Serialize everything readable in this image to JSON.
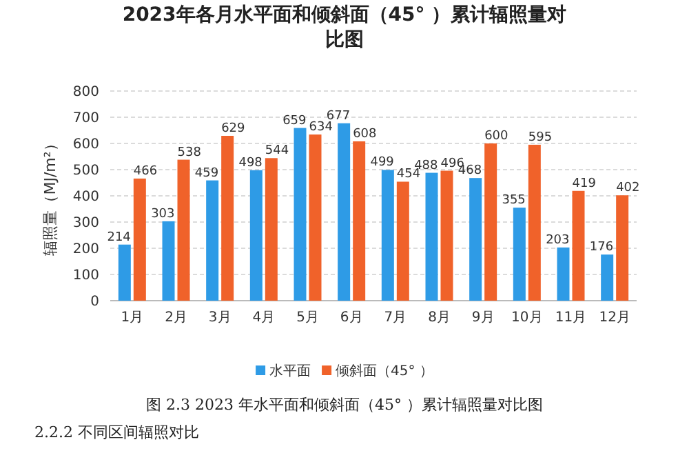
{
  "chart_data": {
    "type": "bar",
    "title": "2023年各月水平面和倾斜面（45° ）累计辐照量对比图",
    "ylabel": "辐照量（MJ/m²）",
    "categories": [
      "1月",
      "2月",
      "3月",
      "4月",
      "5月",
      "6月",
      "7月",
      "8月",
      "9月",
      "10月",
      "11月",
      "12月"
    ],
    "series": [
      {
        "name": "水平面",
        "color": "#2e9be6",
        "values": [
          214,
          303,
          459,
          498,
          659,
          677,
          499,
          488,
          468,
          355,
          203,
          176
        ]
      },
      {
        "name": "倾斜面（45° ）",
        "color": "#f0622a",
        "values": [
          466,
          538,
          629,
          544,
          634,
          608,
          454,
          496,
          600,
          595,
          419,
          402
        ]
      }
    ],
    "ylim": [
      0,
      800
    ],
    "yticks": [
      0,
      100,
      200,
      300,
      400,
      500,
      600,
      700,
      800
    ],
    "grid": "y",
    "legend": "bottom",
    "data_labels": true,
    "annotations": [
      "图 2.3 2023 年水平面和倾斜面（45° ）累计辐照量对比图",
      "2.2.2 不同区间辐照对比"
    ]
  }
}
